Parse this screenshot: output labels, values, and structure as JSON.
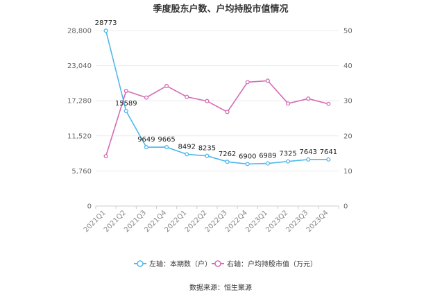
{
  "chart_data": {
    "type": "line",
    "title": "季度股东户数、户均持股市值情况",
    "categories": [
      "2021Q1",
      "2021Q2",
      "2021Q3",
      "2021Q4",
      "2022Q1",
      "2022Q2",
      "2022Q3",
      "2022Q4",
      "2023Q1",
      "2023Q2",
      "2023Q3",
      "2023Q4"
    ],
    "left_axis": {
      "ylim": [
        0,
        28800
      ],
      "ticks": [
        "0",
        "5,760",
        "11,520",
        "17,280",
        "23,040",
        "28,800"
      ]
    },
    "right_axis": {
      "ylim": [
        0,
        50
      ],
      "ticks": [
        "0",
        "10",
        "20",
        "30",
        "40",
        "50"
      ]
    },
    "series": [
      {
        "name": "左轴：本期数（户）",
        "axis": "left",
        "color": "#4fb8ea",
        "values": [
          28773,
          15589,
          9649,
          9665,
          8492,
          8235,
          7262,
          6900,
          6989,
          7325,
          7643,
          7641
        ],
        "labels": [
          "28773",
          "15589",
          "9649",
          "9665",
          "8492",
          "8235",
          "7262",
          "6900",
          "6989",
          "7325",
          "7643",
          "7641"
        ]
      },
      {
        "name": "右轴：户均持股市值（万元）",
        "axis": "right",
        "color": "#d36bb5",
        "values": [
          14.2,
          32.8,
          30.9,
          34.2,
          31.1,
          29.9,
          26.8,
          35.3,
          35.7,
          29.2,
          30.6,
          29.1
        ]
      }
    ],
    "grid": true,
    "legend_position": "bottom"
  },
  "footer": {
    "source": "数据来源：恒生聚源"
  }
}
